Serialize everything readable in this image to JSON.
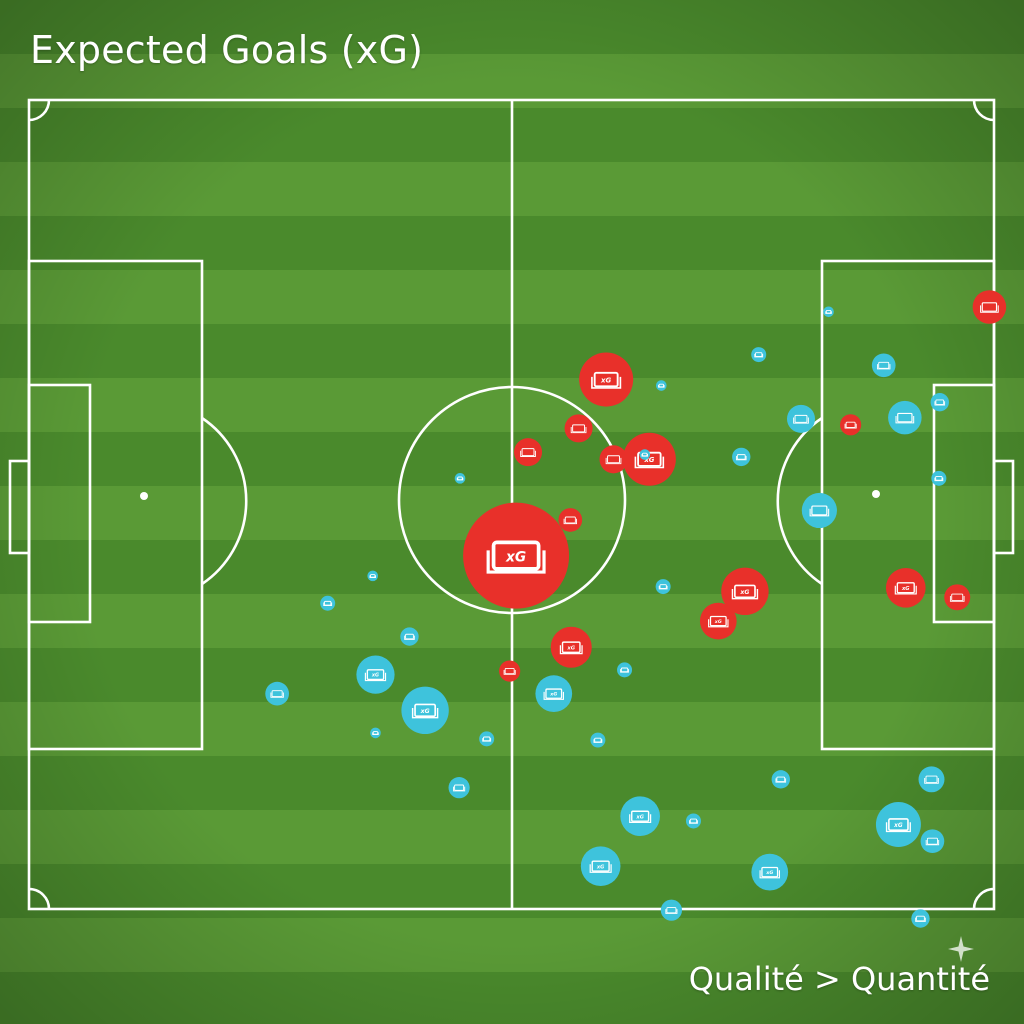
{
  "title": "Expected Goals (xG)",
  "caption": "Qualité > Quantité",
  "colors": {
    "pitch_dark": "#4a8a2c",
    "pitch_light": "#5a9a36",
    "lines": "#ffffff",
    "team_red": "#e8302a",
    "team_cyan": "#3ec3dc"
  },
  "icons": {
    "shot_marker": "xg-badge-icon",
    "watermark": "sparkle-icon"
  },
  "chart_data": {
    "type": "scatter",
    "title": "Expected Goals (xG)",
    "xlabel": "",
    "ylabel": "",
    "xlim": [
      0,
      105
    ],
    "ylim": [
      0,
      68
    ],
    "marker_label": "xG",
    "series": [
      {
        "color": "#e8302a",
        "points": [
          {
            "x": 104.5,
            "y": 17.4,
            "xg": 0.1
          },
          {
            "x": 67.5,
            "y": 30.2,
            "xg": 0.25
          },
          {
            "x": 62.8,
            "y": 23.5,
            "xg": 0.26
          },
          {
            "x": 54.3,
            "y": 29.6,
            "xg": 0.07
          },
          {
            "x": 59.8,
            "y": 27.6,
            "xg": 0.07
          },
          {
            "x": 89.4,
            "y": 27.3,
            "xg": 0.04
          },
          {
            "x": 53.0,
            "y": 38.3,
            "xg": 1.0
          },
          {
            "x": 58.9,
            "y": 35.3,
            "xg": 0.05
          },
          {
            "x": 63.6,
            "y": 30.2,
            "xg": 0.07
          },
          {
            "x": 77.9,
            "y": 41.3,
            "xg": 0.2
          },
          {
            "x": 75.0,
            "y": 43.8,
            "xg": 0.12
          },
          {
            "x": 52.3,
            "y": 48.0,
            "xg": 0.04
          },
          {
            "x": 59.0,
            "y": 46.0,
            "xg": 0.15
          },
          {
            "x": 95.4,
            "y": 41.0,
            "xg": 0.14
          },
          {
            "x": 101.0,
            "y": 41.8,
            "xg": 0.06
          }
        ]
      },
      {
        "color": "#3ec3dc",
        "points": [
          {
            "x": 87.0,
            "y": 17.8,
            "xg": 0.01
          },
          {
            "x": 79.4,
            "y": 21.4,
            "xg": 0.02
          },
          {
            "x": 93.0,
            "y": 22.3,
            "xg": 0.05
          },
          {
            "x": 68.8,
            "y": 24.0,
            "xg": 0.01
          },
          {
            "x": 84.0,
            "y": 26.8,
            "xg": 0.07
          },
          {
            "x": 95.3,
            "y": 26.7,
            "xg": 0.1
          },
          {
            "x": 99.1,
            "y": 25.4,
            "xg": 0.03
          },
          {
            "x": 67.0,
            "y": 29.8,
            "xg": 0.01
          },
          {
            "x": 77.5,
            "y": 30.0,
            "xg": 0.03
          },
          {
            "x": 99.0,
            "y": 31.8,
            "xg": 0.02
          },
          {
            "x": 46.9,
            "y": 31.8,
            "xg": 0.01
          },
          {
            "x": 86.0,
            "y": 34.5,
            "xg": 0.11
          },
          {
            "x": 37.4,
            "y": 40.0,
            "xg": 0.01
          },
          {
            "x": 69.0,
            "y": 40.9,
            "xg": 0.02
          },
          {
            "x": 32.5,
            "y": 42.3,
            "xg": 0.02
          },
          {
            "x": 41.4,
            "y": 45.1,
            "xg": 0.03
          },
          {
            "x": 37.7,
            "y": 48.3,
            "xg": 0.13
          },
          {
            "x": 64.8,
            "y": 47.9,
            "xg": 0.02
          },
          {
            "x": 27.0,
            "y": 49.9,
            "xg": 0.05
          },
          {
            "x": 57.1,
            "y": 49.9,
            "xg": 0.12
          },
          {
            "x": 43.1,
            "y": 51.3,
            "xg": 0.2
          },
          {
            "x": 37.7,
            "y": 53.2,
            "xg": 0.01
          },
          {
            "x": 49.8,
            "y": 53.7,
            "xg": 0.02
          },
          {
            "x": 61.9,
            "y": 53.8,
            "xg": 0.02
          },
          {
            "x": 81.8,
            "y": 57.1,
            "xg": 0.03
          },
          {
            "x": 98.2,
            "y": 57.1,
            "xg": 0.06
          },
          {
            "x": 46.8,
            "y": 57.8,
            "xg": 0.04
          },
          {
            "x": 66.5,
            "y": 60.2,
            "xg": 0.14
          },
          {
            "x": 72.3,
            "y": 60.6,
            "xg": 0.02
          },
          {
            "x": 94.6,
            "y": 60.9,
            "xg": 0.18
          },
          {
            "x": 98.3,
            "y": 62.3,
            "xg": 0.05
          },
          {
            "x": 62.2,
            "y": 64.4,
            "xg": 0.14
          },
          {
            "x": 80.6,
            "y": 64.9,
            "xg": 0.12
          },
          {
            "x": 69.9,
            "y": 68.1,
            "xg": 0.04
          },
          {
            "x": 97.0,
            "y": 68.8,
            "xg": 0.03
          }
        ]
      }
    ]
  }
}
